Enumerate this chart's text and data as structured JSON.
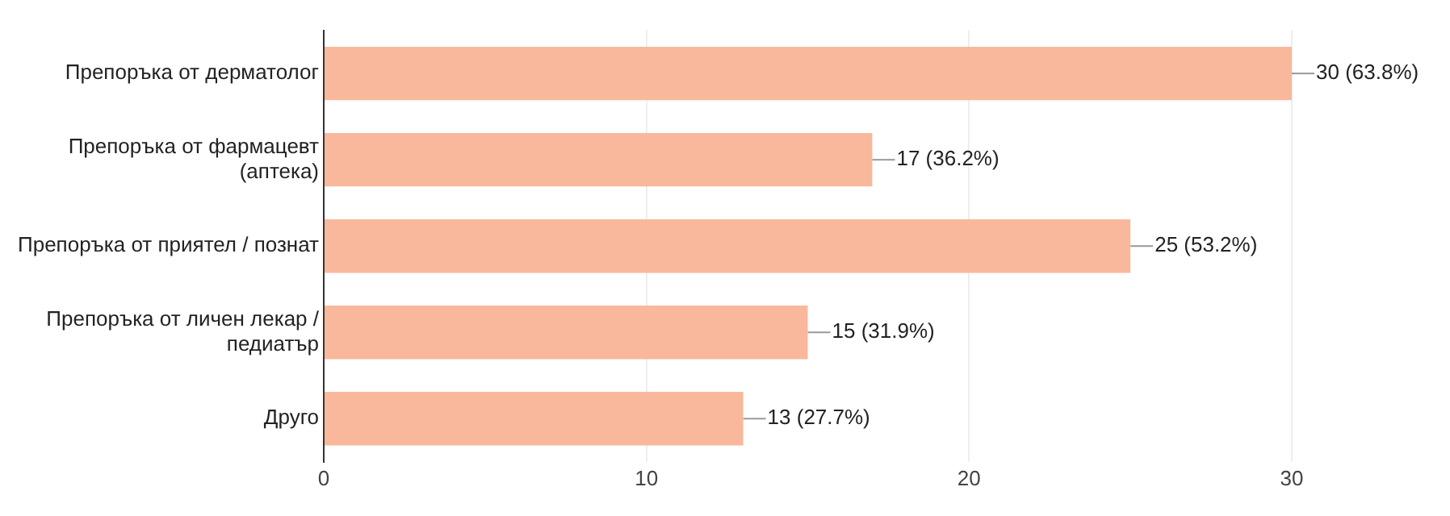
{
  "chart_data": {
    "type": "bar",
    "orientation": "horizontal",
    "categories": [
      "Препоръка от дерматолог",
      "Препоръка от фармацевт (аптека)",
      "Препоръка от приятел / познат",
      "Препоръка от личен лекар / педиатър",
      "Друго"
    ],
    "values": [
      30,
      17,
      25,
      15,
      13
    ],
    "value_labels": [
      "30 (63.8%)",
      "17 (36.2%)",
      "25 (53.2%)",
      "15 (31.9%)",
      "13 (27.7%)"
    ],
    "color": "#f9b89b",
    "xlim": [
      0,
      30
    ],
    "xticks": [
      0,
      10,
      20,
      30
    ],
    "grid": "x",
    "legend": false
  }
}
